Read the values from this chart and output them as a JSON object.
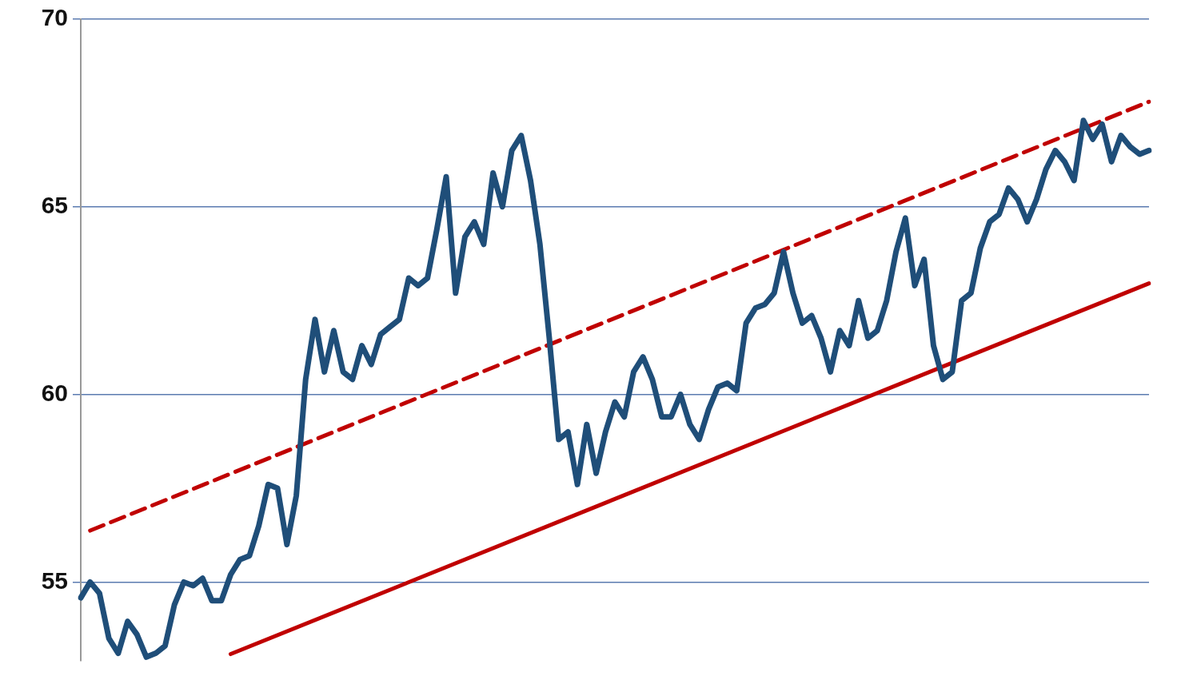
{
  "chart_data": {
    "type": "line",
    "categories": [
      null,
      null,
      null,
      null,
      null,
      null,
      null,
      null,
      null,
      null,
      null,
      null,
      null,
      null,
      null,
      null,
      null,
      null,
      null,
      null,
      null,
      null,
      null,
      null,
      null,
      null,
      null,
      null,
      null,
      null,
      null,
      null,
      null,
      null,
      null,
      null,
      null,
      null,
      null,
      null,
      null,
      null,
      null,
      null,
      null,
      null,
      null,
      null,
      null,
      null,
      null,
      null,
      null,
      null,
      null,
      null,
      null,
      null,
      null,
      null,
      null,
      null,
      null,
      null,
      null,
      null,
      null,
      null,
      null,
      null,
      null,
      null,
      null,
      null,
      null,
      null,
      null,
      null,
      null,
      null,
      null,
      null,
      null,
      null,
      null,
      null,
      null,
      null,
      null,
      null,
      null,
      null,
      null,
      null,
      null,
      null,
      null,
      null,
      null,
      null,
      null,
      null,
      null,
      null,
      null,
      null,
      null,
      null,
      null,
      null,
      null,
      null,
      null,
      null,
      null
    ],
    "series": [
      {
        "color": "#1f4e79",
        "line_style": "solid",
        "values": [
          54.58,
          55.0,
          54.7,
          53.5,
          53.1,
          53.95,
          53.6,
          53.0,
          53.1,
          53.3,
          54.4,
          55.0,
          54.9,
          55.1,
          54.5,
          54.5,
          55.2,
          55.6,
          55.7,
          56.5,
          57.6,
          57.5,
          56.0,
          57.3,
          60.4,
          62.0,
          60.6,
          61.7,
          60.6,
          60.4,
          61.3,
          60.8,
          61.6,
          61.8,
          62.0,
          63.1,
          62.9,
          63.1,
          64.4,
          65.8,
          62.7,
          64.2,
          64.6,
          64.0,
          65.9,
          65.0,
          66.5,
          66.9,
          65.7,
          64.0,
          61.5,
          58.8,
          59.0,
          57.6,
          59.2,
          57.9,
          59.0,
          59.8,
          59.4,
          60.6,
          61.0,
          60.4,
          59.4,
          59.4,
          60.0,
          59.2,
          58.8,
          59.6,
          60.2,
          60.3,
          60.1,
          61.9,
          62.3,
          62.4,
          62.7,
          63.8,
          62.7,
          61.9,
          62.1,
          61.5,
          60.6,
          61.7,
          61.3,
          62.5,
          61.5,
          61.7,
          62.5,
          63.8,
          64.7,
          62.9,
          63.6,
          61.3,
          60.4,
          60.6,
          62.5,
          62.7,
          63.9,
          64.6,
          64.8,
          65.5,
          65.2,
          64.6,
          65.2,
          66.0,
          66.5,
          66.2,
          65.7,
          67.3,
          66.8,
          67.2,
          66.2,
          66.9,
          66.6,
          66.4,
          66.5
        ]
      },
      {
        "type": "line",
        "color": "#c00000",
        "line_style": "dashed",
        "values": [
          null,
          56.37,
          null,
          null,
          null,
          null,
          null,
          null,
          null,
          null,
          null,
          null,
          null,
          null,
          null,
          null,
          null,
          null,
          null,
          null,
          null,
          null,
          null,
          null,
          null,
          null,
          null,
          null,
          null,
          null,
          null,
          null,
          null,
          null,
          null,
          null,
          null,
          null,
          null,
          null,
          null,
          null,
          null,
          null,
          null,
          null,
          null,
          null,
          null,
          null,
          null,
          null,
          null,
          null,
          null,
          null,
          null,
          null,
          null,
          null,
          null,
          null,
          null,
          null,
          null,
          null,
          null,
          null,
          null,
          null,
          null,
          null,
          null,
          null,
          null,
          null,
          null,
          null,
          null,
          null,
          null,
          null,
          null,
          null,
          null,
          null,
          null,
          null,
          null,
          null,
          null,
          null,
          null,
          null,
          null,
          null,
          null,
          null,
          null,
          null,
          null,
          null,
          null,
          null,
          null,
          null,
          null,
          null,
          null,
          null,
          null,
          null,
          null,
          null,
          67.8
        ]
      },
      {
        "type": "line",
        "color": "#c00000",
        "line_style": "solid",
        "values": [
          null,
          null,
          null,
          null,
          null,
          null,
          null,
          null,
          null,
          null,
          null,
          null,
          null,
          null,
          null,
          null,
          53.08,
          null,
          null,
          null,
          null,
          null,
          null,
          null,
          null,
          null,
          null,
          null,
          null,
          null,
          null,
          null,
          null,
          null,
          null,
          null,
          null,
          null,
          null,
          null,
          null,
          null,
          null,
          null,
          null,
          null,
          null,
          null,
          null,
          null,
          null,
          null,
          null,
          null,
          null,
          null,
          null,
          null,
          null,
          null,
          null,
          null,
          null,
          null,
          null,
          null,
          null,
          null,
          null,
          null,
          null,
          null,
          null,
          null,
          null,
          null,
          null,
          null,
          null,
          null,
          null,
          null,
          null,
          null,
          null,
          null,
          null,
          null,
          null,
          null,
          null,
          null,
          null,
          null,
          null,
          null,
          null,
          null,
          null,
          null,
          null,
          null,
          null,
          null,
          null,
          null,
          null,
          null,
          null,
          null,
          null,
          null,
          null,
          null,
          62.96
        ]
      }
    ],
    "ylim": [
      52.9,
      70
    ],
    "yticks": [
      55,
      60,
      65,
      70
    ],
    "grid": "y",
    "legend": false,
    "tick_labels": "y",
    "marker": "none"
  }
}
